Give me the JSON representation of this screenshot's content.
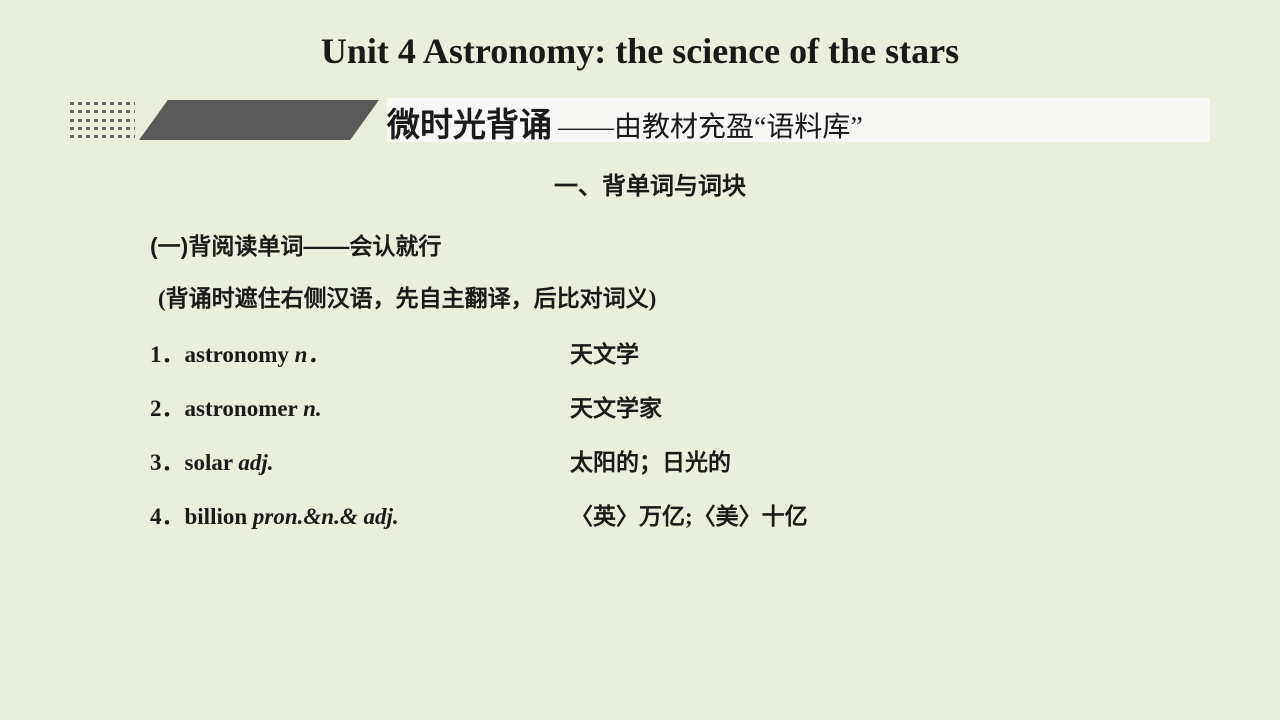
{
  "colors": {
    "background": "#e9eedd",
    "title_text": "#1a1a1a",
    "text": "#1a1a1a",
    "slant_fill": "#5a5a5a",
    "slant_border": "#4a4a4a",
    "banner_rest_bg": "#f7f7f5",
    "pattern_gray": "#666666"
  },
  "typography": {
    "title_size": 36,
    "banner_bold_size": 33,
    "banner_sub_size": 28,
    "section_size": 24,
    "body_size": 23,
    "line_gap": 20
  },
  "title": "Unit 4 Astronomy: the science of the stars",
  "banner": {
    "bold": "微时光背诵",
    "dash": "——",
    "sub": "由教材充盈“语料库”"
  },
  "section_heading": "一、背单词与词块",
  "sub_heading": "(一)背阅读单词——会认就行",
  "note": "(背诵时遮住右侧汉语，先自主翻译，后比对词义)",
  "vocab": [
    {
      "num": "1．",
      "word": "astronomy ",
      "pos": "n．",
      "zh": "天文学"
    },
    {
      "num": "2．",
      "word": "astronomer ",
      "pos": "n.",
      "zh": "天文学家"
    },
    {
      "num": "3．",
      "word": "solar ",
      "pos": "adj.",
      "zh": "太阳的；日光的"
    },
    {
      "num": "4．",
      "word": "billion ",
      "pos": "pron.&n.& adj.",
      "zh": "〈英〉万亿;〈美〉十亿"
    }
  ]
}
